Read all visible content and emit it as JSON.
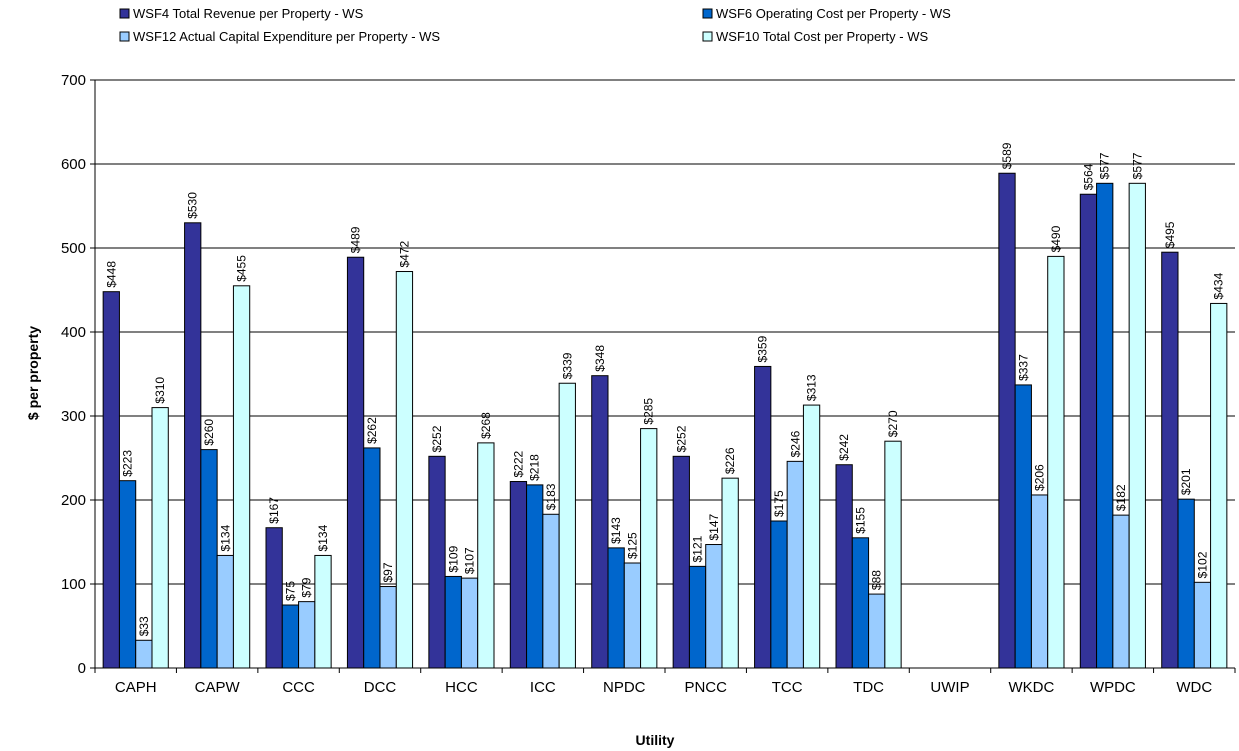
{
  "chart_data": {
    "type": "bar",
    "title": "",
    "xlabel": "Utility",
    "ylabel": "$ per property",
    "ylim": [
      0,
      700
    ],
    "yticks": [
      0,
      100,
      200,
      300,
      400,
      500,
      600,
      700
    ],
    "grid": "horizontal",
    "legend_placement": "top",
    "label_prefix": "$",
    "categories": [
      "CAPH",
      "CAPW",
      "CCC",
      "DCC",
      "HCC",
      "ICC",
      "NPDC",
      "PNCC",
      "TCC",
      "TDC",
      "UWIP",
      "WKDC",
      "WPDC",
      "WDC"
    ],
    "series": [
      {
        "name": "WSF4 Total Revenue per Property - WS",
        "color": "#333399",
        "values": [
          448,
          530,
          167,
          489,
          252,
          222,
          348,
          252,
          359,
          242,
          null,
          589,
          564,
          495
        ]
      },
      {
        "name": "WSF6 Operating Cost per Property - WS",
        "color": "#0066CC",
        "values": [
          223,
          260,
          75,
          262,
          109,
          218,
          143,
          121,
          175,
          155,
          null,
          337,
          577,
          201
        ]
      },
      {
        "name": "WSF12 Actual Capital Expenditure per Property - WS",
        "color": "#99CCFF",
        "values": [
          33,
          134,
          79,
          97,
          107,
          183,
          125,
          147,
          246,
          88,
          null,
          206,
          182,
          102
        ]
      },
      {
        "name": "WSF10 Total Cost per Property - WS",
        "color": "#CCFFFF",
        "values": [
          310,
          455,
          134,
          472,
          268,
          339,
          285,
          226,
          313,
          270,
          null,
          490,
          577,
          434
        ]
      }
    ]
  }
}
